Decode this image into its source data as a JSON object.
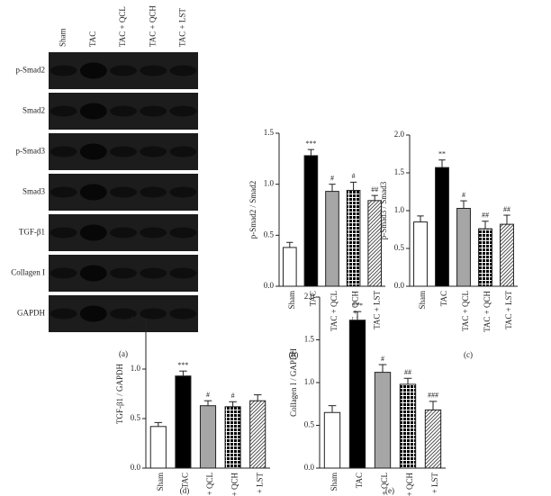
{
  "blot": {
    "lanes": [
      "Sham",
      "TAC",
      "TAC + QCL",
      "TAC + QCH",
      "TAC + LST"
    ],
    "rows": [
      "p-Smad2",
      "Smad2",
      "p-Smad3",
      "Smad3",
      "TGF-β1",
      "Collagen I",
      "GAPDH"
    ],
    "caption": "(a)"
  },
  "chart_data": [
    {
      "type": "bar",
      "caption": "(b)",
      "ylabel": "p-Smad2 / Smad2",
      "categories": [
        "Sham",
        "TAC",
        "TAC + QCL",
        "TAC + QCH",
        "TAC + LST"
      ],
      "values": [
        0.38,
        1.28,
        0.93,
        0.94,
        0.84
      ],
      "errors": [
        0.05,
        0.06,
        0.07,
        0.08,
        0.05
      ],
      "annotations": [
        null,
        "***",
        "#",
        "#",
        "##"
      ],
      "colors": [
        "#ffffff",
        "#000000",
        "#a6a6a6",
        "#000000",
        "#555555"
      ],
      "patterns": [
        "solid",
        "solid",
        "solid",
        "grid",
        "hatch"
      ],
      "ylim": [
        0,
        1.5
      ],
      "yticks": [
        {
          "value": 0,
          "label": "0.0"
        },
        0.5,
        {
          "value": 1,
          "label": "1.0"
        },
        1.5
      ]
    },
    {
      "type": "bar",
      "caption": "(c)",
      "ylabel": "p-Smad3 / Smad3",
      "categories": [
        "Sham",
        "TAC",
        "TAC + QCL",
        "TAC + QCH",
        "TAC + LST"
      ],
      "values": [
        0.85,
        1.57,
        1.03,
        0.76,
        0.82
      ],
      "errors": [
        0.08,
        0.1,
        0.1,
        0.1,
        0.12
      ],
      "annotations": [
        null,
        "**",
        "#",
        "##",
        "##"
      ],
      "colors": [
        "#ffffff",
        "#000000",
        "#a6a6a6",
        "#000000",
        "#555555"
      ],
      "patterns": [
        "solid",
        "solid",
        "solid",
        "grid",
        "hatch"
      ],
      "ylim": [
        0,
        2
      ],
      "yticks": [
        {
          "value": 0,
          "label": "0.0"
        },
        0.5,
        {
          "value": 1,
          "label": "1.0"
        },
        1.5,
        {
          "value": 2,
          "label": "2.0"
        }
      ]
    },
    {
      "type": "bar",
      "caption": "(d)",
      "ylabel": "TGF-β1 / GAPDH",
      "categories": [
        "Sham",
        "TAC",
        "TAC + QCL",
        "TAC + QCH",
        "TAC + LST"
      ],
      "values": [
        0.42,
        0.93,
        0.63,
        0.62,
        0.68
      ],
      "errors": [
        0.04,
        0.05,
        0.05,
        0.05,
        0.06
      ],
      "annotations": [
        null,
        "***",
        "#",
        "#",
        null
      ],
      "colors": [
        "#ffffff",
        "#000000",
        "#a6a6a6",
        "#000000",
        "#555555"
      ],
      "patterns": [
        "solid",
        "solid",
        "solid",
        "grid",
        "hatch"
      ],
      "ylim": [
        0,
        1.5
      ],
      "yticks": [
        {
          "value": 0,
          "label": "0.0"
        },
        0.5,
        {
          "value": 1,
          "label": "1.0"
        },
        1.5
      ]
    },
    {
      "type": "bar",
      "caption": "(e)",
      "ylabel": "Collagen I / GAPDH",
      "categories": [
        "Sham",
        "TAC",
        "TAC + QCL",
        "TAC + QCH",
        "TAC + LST"
      ],
      "values": [
        0.65,
        1.73,
        1.12,
        0.98,
        0.68
      ],
      "errors": [
        0.08,
        0.1,
        0.09,
        0.07,
        0.1
      ],
      "annotations": [
        null,
        "***",
        "#",
        "##",
        "###"
      ],
      "colors": [
        "#ffffff",
        "#000000",
        "#a6a6a6",
        "#000000",
        "#555555"
      ],
      "patterns": [
        "solid",
        "solid",
        "solid",
        "grid",
        "hatch"
      ],
      "ylim": [
        0,
        2
      ],
      "yticks": [
        {
          "value": 0,
          "label": "0.0"
        },
        0.5,
        {
          "value": 1,
          "label": "1.0"
        },
        1.5,
        {
          "value": 2,
          "label": "2.0"
        }
      ]
    }
  ]
}
